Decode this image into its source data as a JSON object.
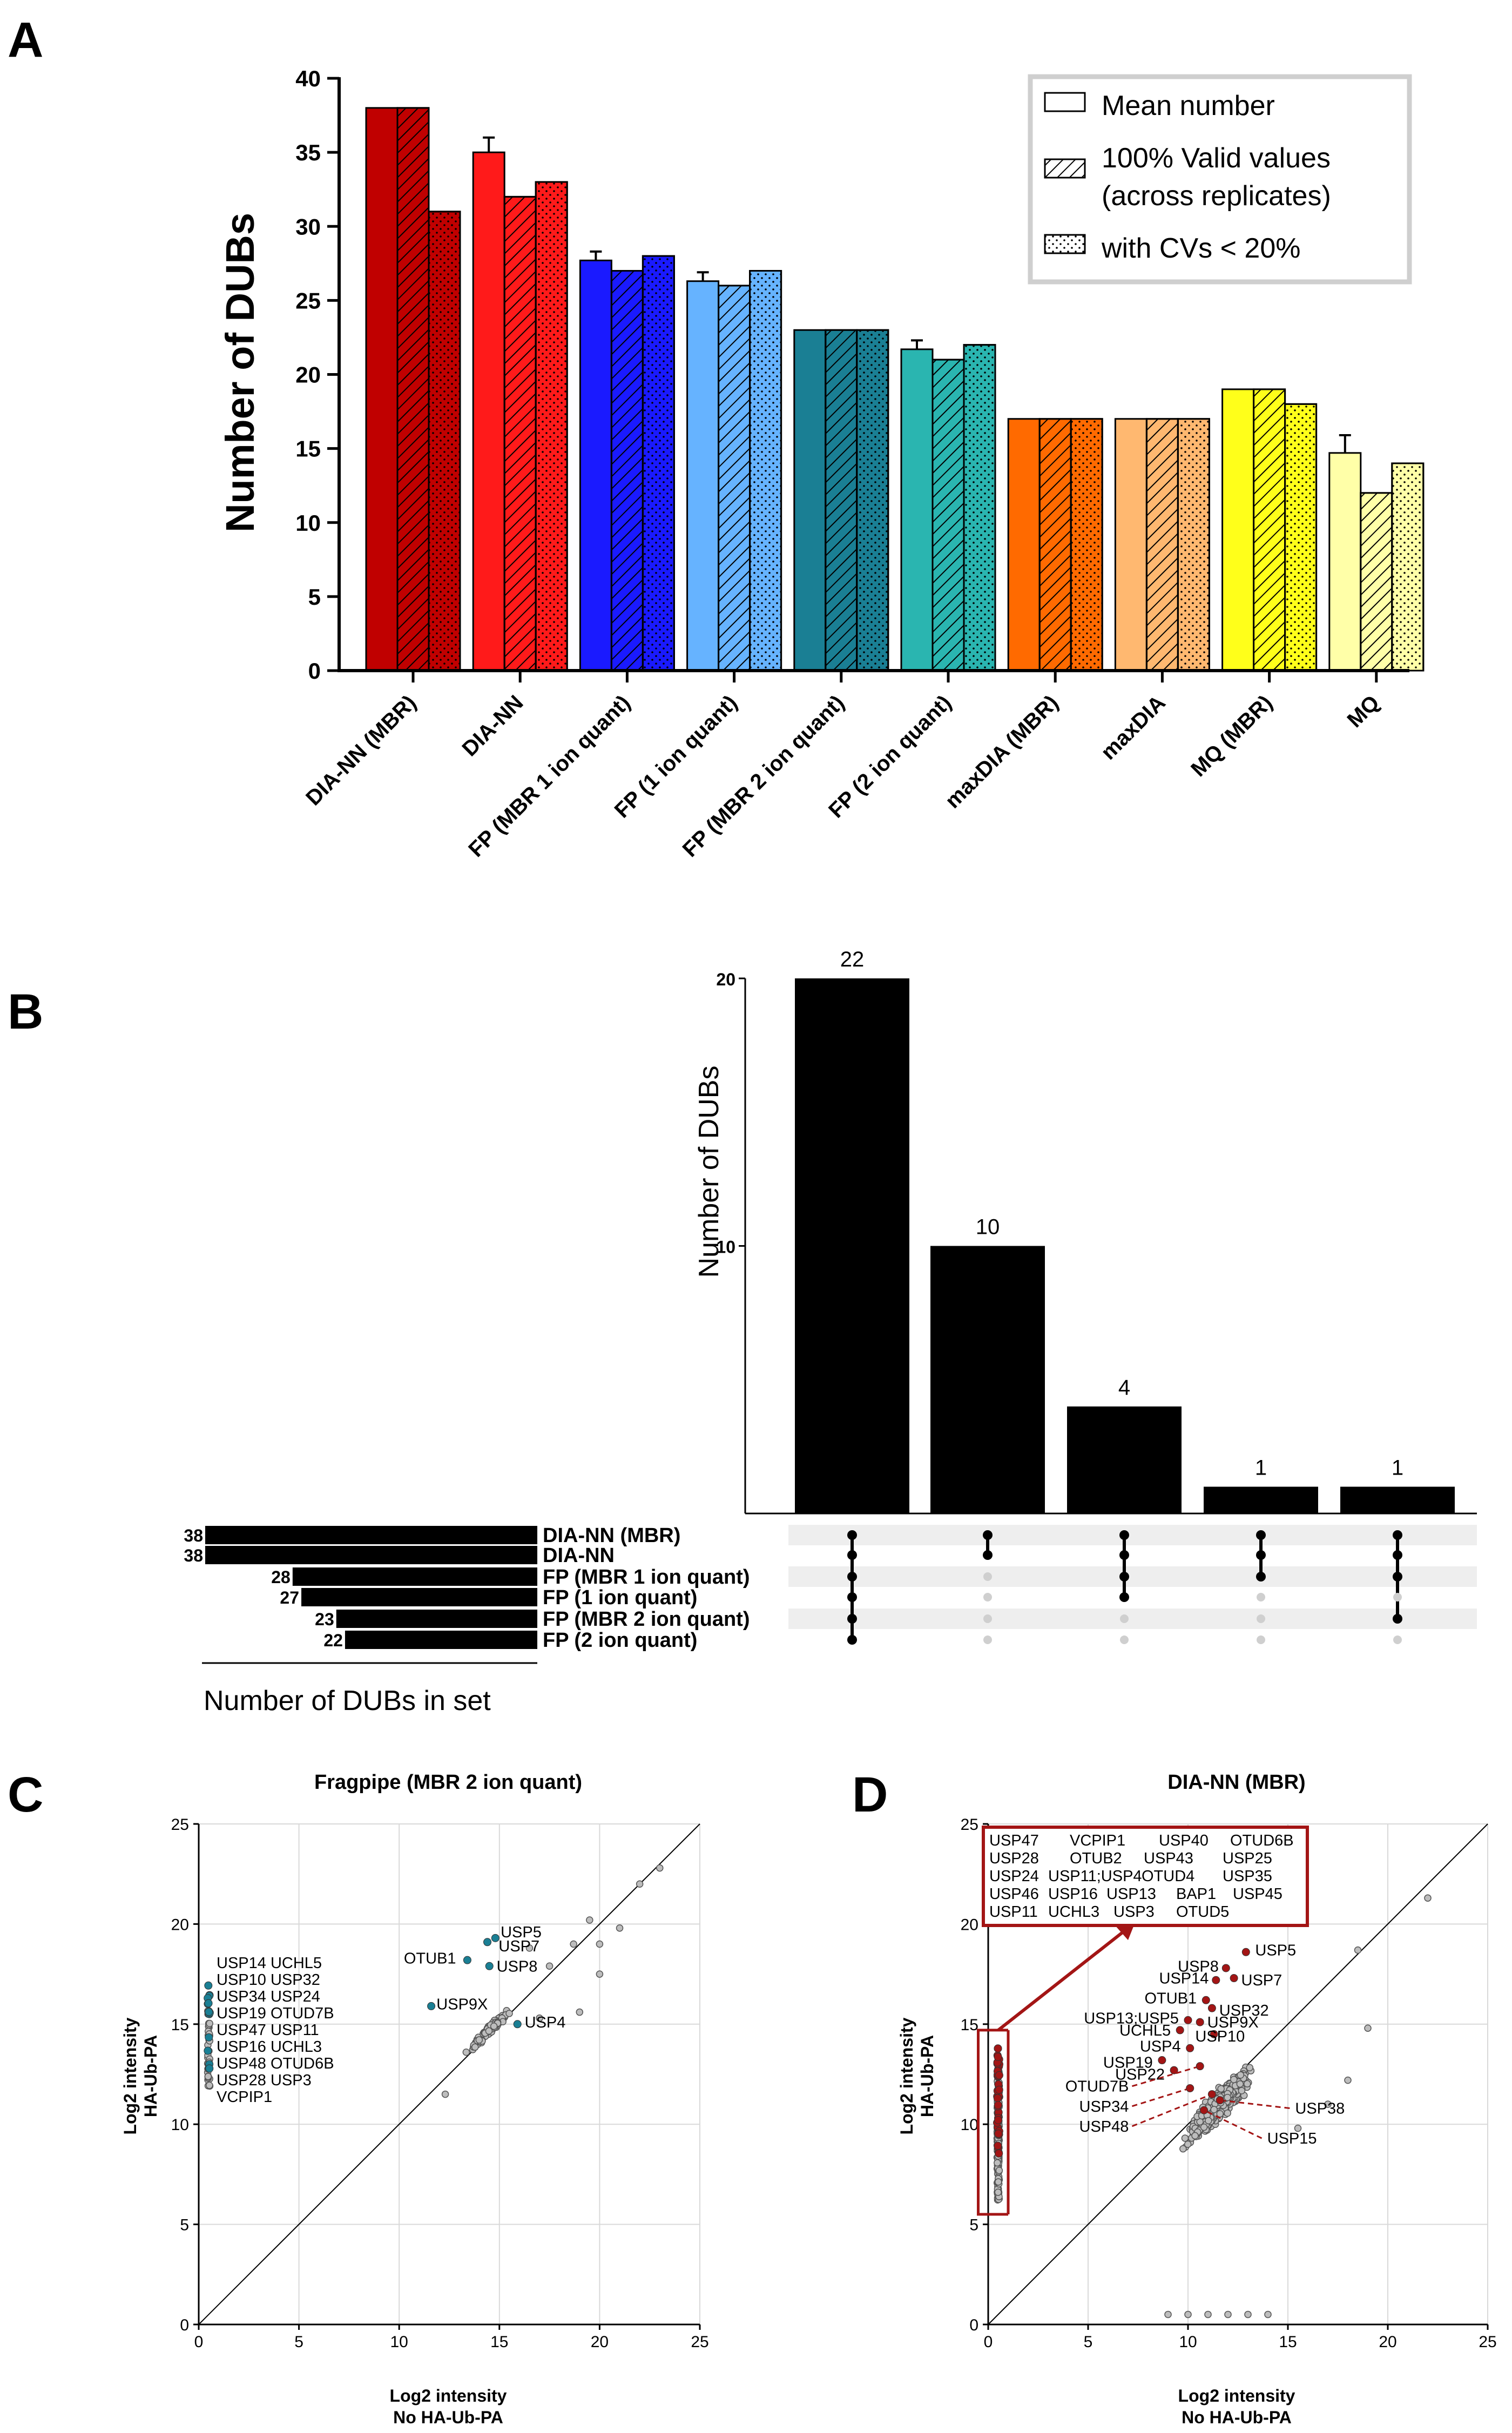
{
  "panels": {
    "A": "A",
    "B": "B",
    "C": "C",
    "D": "D"
  },
  "chart_data": [
    {
      "type": "bar",
      "panel": "A",
      "ylabel": "Number of  DUBs",
      "ylim": [
        0,
        40
      ],
      "yticks": [
        0,
        5,
        10,
        15,
        20,
        25,
        30,
        35,
        40
      ],
      "categories": [
        "DIA-NN (MBR)",
        "DIA-NN",
        "FP (MBR 1 ion quant)",
        "FP (1 ion quant)",
        "FP (MBR 2 ion quant)",
        "FP (2 ion quant)",
        "maxDIA (MBR)",
        "maxDIA",
        "MQ (MBR)",
        "MQ"
      ],
      "category_colors": [
        "#c00000",
        "#ff1a1a",
        "#1a1aff",
        "#66b3ff",
        "#1a7f94",
        "#2ab5b0",
        "#ff6a00",
        "#ffb870",
        "#ffff1a",
        "#ffffa8"
      ],
      "series": [
        {
          "name": "Mean number",
          "pattern": "solid",
          "values": [
            38,
            35,
            27.7,
            26.3,
            23,
            21.7,
            17,
            17,
            19,
            14.7
          ],
          "errors": [
            0,
            1.0,
            0.6,
            0.6,
            0,
            0.6,
            0,
            0,
            0,
            1.2
          ]
        },
        {
          "name": "100% Valid values\n(across replicates)",
          "pattern": "hatch",
          "values": [
            38,
            32,
            27,
            26,
            23,
            21,
            17,
            17,
            19,
            12
          ]
        },
        {
          "name": "with CVs < 20%",
          "pattern": "dots",
          "values": [
            31,
            33,
            28,
            27,
            23,
            22,
            17,
            17,
            18,
            14
          ]
        }
      ],
      "legend": {
        "position": "top-right",
        "entries": [
          "Mean number",
          "100% Valid values",
          "(across replicates)",
          "with CVs < 20%"
        ]
      }
    },
    {
      "type": "upset",
      "panel": "B",
      "ylabel": "Number of DUBs",
      "yticks": [
        10,
        20
      ],
      "intersections": [
        {
          "size": 22,
          "label": "22",
          "sets": [
            0,
            1,
            2,
            3,
            4,
            5
          ]
        },
        {
          "size": 10,
          "label": "10",
          "sets": [
            0,
            1
          ]
        },
        {
          "size": 4,
          "label": "4",
          "sets": [
            0,
            1,
            2,
            3
          ]
        },
        {
          "size": 1,
          "label": "1",
          "sets": [
            0,
            1,
            2
          ]
        },
        {
          "size": 1,
          "label": "1",
          "sets": [
            0,
            1,
            2,
            4
          ]
        }
      ],
      "ylim_display": [
        0,
        20
      ],
      "sets": [
        {
          "name": "DIA-NN (MBR)",
          "size": 38
        },
        {
          "name": "DIA-NN",
          "size": 38
        },
        {
          "name": "FP (MBR 1 ion quant)",
          "size": 28
        },
        {
          "name": "FP (1 ion quant)",
          "size": 27
        },
        {
          "name": "FP (MBR 2 ion quant)",
          "size": 23
        },
        {
          "name": "FP (2 ion quant)",
          "size": 22
        }
      ],
      "set_size_label": "Number of DUBs in set"
    },
    {
      "type": "scatter",
      "panel": "C",
      "title": "Fragpipe (MBR 2 ion quant)",
      "xlabel": "Log2 intensity",
      "xlabel2": "No HA-Ub-PA",
      "ylabel": "Log2 intensity",
      "ylabel2": "HA-Ub-PA",
      "xlim": [
        0,
        25
      ],
      "ylim": [
        0,
        25
      ],
      "ticks": [
        0,
        5,
        10,
        15,
        20,
        25
      ],
      "highlight_color": "#1a7f94",
      "dub_points": [
        {
          "label": "USP5",
          "x": 14.8,
          "y": 19.3
        },
        {
          "label": "USP7",
          "x": 14.4,
          "y": 19.1
        },
        {
          "label": "OTUB1",
          "x": 13.4,
          "y": 18.2
        },
        {
          "label": "USP8",
          "x": 14.5,
          "y": 17.9
        },
        {
          "label": "USP9X",
          "x": 11.6,
          "y": 15.9
        },
        {
          "label": "USP4",
          "x": 15.9,
          "y": 15.0
        }
      ],
      "left_labels": [
        "USP14 UCHL5",
        "USP10 USP32",
        "USP34 USP24",
        "USP19 OTUD7B",
        "USP47 USP11",
        "USP16 UCHL3",
        "USP48 OTUD6B",
        "USP28 USP3",
        "VCPIP1"
      ]
    },
    {
      "type": "scatter",
      "panel": "D",
      "title": "DIA-NN (MBR)",
      "xlabel": "Log2 intensity",
      "xlabel2": "No HA-Ub-PA",
      "ylabel": "Log2 intensity",
      "ylabel2": "HA-Ub-PA",
      "xlim": [
        0,
        25
      ],
      "ylim": [
        0,
        25
      ],
      "ticks": [
        0,
        5,
        10,
        15,
        20,
        25
      ],
      "highlight_color": "#a31515",
      "dub_points": [
        {
          "label": "USP5",
          "x": 12.9,
          "y": 18.6
        },
        {
          "label": "USP8",
          "x": 11.9,
          "y": 17.8
        },
        {
          "label": "USP14",
          "x": 11.4,
          "y": 17.2
        },
        {
          "label": "USP7",
          "x": 12.3,
          "y": 17.3
        },
        {
          "label": "OTUB1",
          "x": 10.9,
          "y": 16.2
        },
        {
          "label": "USP32",
          "x": 11.2,
          "y": 15.8
        },
        {
          "label": "USP13;USP5",
          "x": 10.0,
          "y": 15.2
        },
        {
          "label": "USP9X",
          "x": 10.6,
          "y": 15.1
        },
        {
          "label": "UCHL5",
          "x": 9.6,
          "y": 14.7
        },
        {
          "label": "USP10",
          "x": 11.3,
          "y": 14.5
        },
        {
          "label": "USP4",
          "x": 10.1,
          "y": 13.8
        },
        {
          "label": "USP19",
          "x": 8.7,
          "y": 13.2
        },
        {
          "label": "USP22",
          "x": 9.3,
          "y": 12.7
        }
      ],
      "dashed_labels": [
        "OTUD7B",
        "USP34",
        "USP48",
        "USP38",
        "USP15"
      ],
      "box_labels": [
        "USP47",
        "VCPIP1",
        "USP40",
        "OTUD6B",
        "USP28",
        "OTUB2",
        "USP43",
        "USP25",
        "USP24",
        "USP11;USP4",
        "OTUD4",
        "USP35",
        "USP46",
        "USP16",
        "USP13",
        "BAP1",
        "USP45",
        "USP11",
        "UCHL3",
        "USP3",
        "OTUD5"
      ]
    }
  ]
}
